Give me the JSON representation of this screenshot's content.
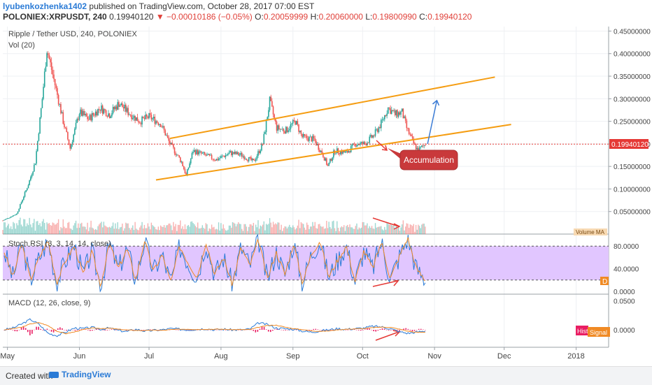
{
  "header": {
    "author": "lyubenkozhenka1402",
    "published": " published on TradingView.com, October 28, 2017 07:00 EST",
    "symbol": "POLONIEX:XRPUSDT, 240",
    "last": "0.19940120",
    "change": "▼ −0.00010186 (−0.05%)",
    "ohlc_o_label": "O:",
    "ohlc_o": "0.20059999",
    "ohlc_h_label": "H:",
    "ohlc_h": "0.20060000",
    "ohlc_l_label": "L:",
    "ohlc_l": "0.19800990",
    "ohlc_c_label": "C:",
    "ohlc_c": "0.19940120"
  },
  "colors": {
    "up": "#26a69a",
    "down": "#ef5350",
    "channel": "#f59d12",
    "arrow_up": "#3a7bd5",
    "arrow_red": "#e53935",
    "stoch_k": "#2b7bd6",
    "stoch_d": "#f08a24",
    "stoch_band": "#e1c6ff",
    "macd_line": "#2b7bd6",
    "signal_line": "#f08a24",
    "hist": "#e91e63",
    "price_line": "#e53935",
    "label_bg": "#c9393b"
  },
  "chart_data": [
    {
      "type": "candlestick",
      "title": "Ripple / Tether USD, 240, POLONIEX",
      "indicator_label": "Vol (20)",
      "volume_ma_label": "Volume MA",
      "x_ticks": [
        "May",
        "Jun",
        "Jul",
        "Aug",
        "Sep",
        "Oct",
        "Nov",
        "Dec",
        "2018"
      ],
      "y_ticks": [
        "0.45000000",
        "0.40000000",
        "0.35000000",
        "0.30000000",
        "0.25000000",
        "0.20000000",
        "0.15000000",
        "0.10000000",
        "0.05000000"
      ],
      "ylim": [
        0,
        0.46
      ],
      "last_price": "0.19940120",
      "last_price_value": 0.1994,
      "trend": [
        {
          "date": "2017-04-29",
          "close": 0.03
        },
        {
          "date": "2017-05-05",
          "close": 0.045
        },
        {
          "date": "2017-05-10",
          "close": 0.11
        },
        {
          "date": "2017-05-13",
          "close": 0.16
        },
        {
          "date": "2017-05-16",
          "close": 0.3
        },
        {
          "date": "2017-05-18",
          "close": 0.41
        },
        {
          "date": "2017-05-22",
          "close": 0.32
        },
        {
          "date": "2017-05-25",
          "close": 0.25
        },
        {
          "date": "2017-05-28",
          "close": 0.19
        },
        {
          "date": "2017-06-01",
          "close": 0.27
        },
        {
          "date": "2017-06-05",
          "close": 0.255
        },
        {
          "date": "2017-06-10",
          "close": 0.28
        },
        {
          "date": "2017-06-14",
          "close": 0.265
        },
        {
          "date": "2017-06-18",
          "close": 0.29
        },
        {
          "date": "2017-06-22",
          "close": 0.27
        },
        {
          "date": "2017-06-27",
          "close": 0.25
        },
        {
          "date": "2017-07-01",
          "close": 0.26
        },
        {
          "date": "2017-07-06",
          "close": 0.245
        },
        {
          "date": "2017-07-10",
          "close": 0.2
        },
        {
          "date": "2017-07-15",
          "close": 0.16
        },
        {
          "date": "2017-07-17",
          "close": 0.13
        },
        {
          "date": "2017-07-20",
          "close": 0.185
        },
        {
          "date": "2017-07-25",
          "close": 0.175
        },
        {
          "date": "2017-07-30",
          "close": 0.165
        },
        {
          "date": "2017-08-05",
          "close": 0.18
        },
        {
          "date": "2017-08-10",
          "close": 0.175
        },
        {
          "date": "2017-08-15",
          "close": 0.16
        },
        {
          "date": "2017-08-19",
          "close": 0.2
        },
        {
          "date": "2017-08-22",
          "close": 0.295
        },
        {
          "date": "2017-08-25",
          "close": 0.235
        },
        {
          "date": "2017-08-29",
          "close": 0.23
        },
        {
          "date": "2017-09-02",
          "close": 0.25
        },
        {
          "date": "2017-09-05",
          "close": 0.215
        },
        {
          "date": "2017-09-10",
          "close": 0.21
        },
        {
          "date": "2017-09-14",
          "close": 0.175
        },
        {
          "date": "2017-09-16",
          "close": 0.15
        },
        {
          "date": "2017-09-19",
          "close": 0.185
        },
        {
          "date": "2017-09-24",
          "close": 0.18
        },
        {
          "date": "2017-09-28",
          "close": 0.2
        },
        {
          "date": "2017-10-02",
          "close": 0.2
        },
        {
          "date": "2017-10-06",
          "close": 0.22
        },
        {
          "date": "2017-10-09",
          "close": 0.245
        },
        {
          "date": "2017-10-12",
          "close": 0.28
        },
        {
          "date": "2017-10-15",
          "close": 0.265
        },
        {
          "date": "2017-10-18",
          "close": 0.27
        },
        {
          "date": "2017-10-20",
          "close": 0.235
        },
        {
          "date": "2017-10-23",
          "close": 0.2
        },
        {
          "date": "2017-10-25",
          "close": 0.185
        },
        {
          "date": "2017-10-28",
          "close": 0.1994
        }
      ],
      "drawings": {
        "channel_upper": [
          {
            "date": "2017-07-10",
            "price": 0.212
          },
          {
            "date": "2017-11-27",
            "price": 0.348
          }
        ],
        "channel_lower": [
          {
            "date": "2017-07-04",
            "price": 0.12
          },
          {
            "date": "2017-12-04",
            "price": 0.243
          }
        ],
        "arrow_up": [
          {
            "date": "2017-10-29",
            "price": 0.2
          },
          {
            "date": "2017-11-02",
            "price": 0.296
          }
        ],
        "annotation": "Accumulation"
      }
    },
    {
      "type": "line",
      "title": "Stoch RSI (3, 3, 14, 14, close)",
      "y_ticks": [
        "80.0000",
        "40.0000",
        "0.0000"
      ],
      "ylim": [
        -5,
        100
      ],
      "bands": [
        20,
        80
      ],
      "series": [
        {
          "values": [
            70,
            25,
            85,
            20,
            60,
            90,
            15,
            55,
            80,
            30,
            70,
            10,
            85,
            40,
            75,
            20,
            90,
            35,
            65,
            15,
            80,
            50,
            25,
            88,
            30,
            60,
            12,
            78,
            45,
            92,
            20,
            70,
            30,
            85,
            15,
            65,
            90,
            25,
            55,
            80,
            18,
            72,
            40,
            88,
            22,
            60,
            95,
            40,
            20
          ]
        }
      ],
      "last_label": "D"
    },
    {
      "type": "line",
      "title": "MACD (12, 26, close, 9)",
      "y_ticks": [
        "0.0500",
        "0.0000"
      ],
      "ylim": [
        -0.03,
        0.06
      ],
      "series": [
        {
          "values": [
            0.0,
            0.003,
            0.01,
            0.018,
            0.009,
            -0.006,
            -0.01,
            -0.004,
            0.003,
            0.002,
            0.004,
            0.001,
            0.003,
            -0.001,
            -0.003,
            0.001,
            -0.002,
            -0.001,
            0.0,
            0.002,
            0.001,
            0.0,
            0.001,
            0.002,
            0.0,
            0.001,
            0.0,
            0.0,
            0.001,
            0.012,
            0.009,
            0.003,
            0.002,
            0.001,
            -0.002,
            -0.004,
            -0.002,
            0.0,
            0.002,
            0.001,
            0.002,
            0.003,
            0.006,
            0.005,
            0.002,
            -0.003,
            -0.006,
            -0.004,
            -0.002
          ]
        }
      ],
      "hist_label": "Hist",
      "signal_label": "Signal"
    }
  ],
  "footer": {
    "created_with": "Created with",
    "brand": "TradingView"
  }
}
